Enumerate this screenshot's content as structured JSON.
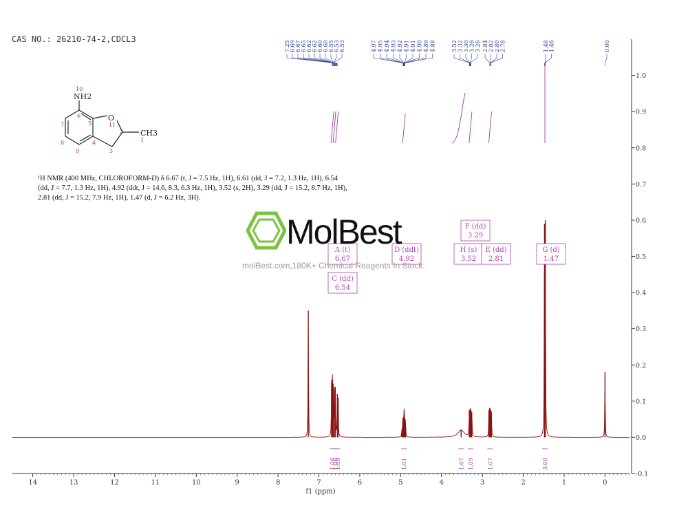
{
  "header": {
    "cas_text": "CAS NO.: 26210-74-2,CDCL3"
  },
  "description": {
    "lead": "¹H NMR (400 MHz, CHLOROFORM-",
    "solvent_suffix": "D",
    "body": ") δ 6.67 (t, J = 7.5 Hz, 1H), 6.61 (dd, J = 7.2, 1.3 Hz, 1H), 6.54 (dd, J = 7.7, 1.3 Hz, 1H), 4.92 (ddt, J = 14.6, 8.3, 6.3 Hz, 1H), 3.52 (s, 2H), 3.29 (dd, J = 15.2, 8.7 Hz, 1H), 2.81 (dd, J = 15.2, 7.9 Hz, 1H), 1.47 (d, J = 6.2 Hz, 3H)."
  },
  "watermark": {
    "name": "MolBest",
    "tagline": "molBest.com,180K+ Chemical Reagents In Stock."
  },
  "structure": {
    "atom_labels": [
      "NH2",
      "O",
      "CH3",
      "10",
      "6",
      "5",
      "11",
      "2",
      "1",
      "7",
      "8",
      "9",
      "4",
      "3"
    ]
  },
  "colors": {
    "spectrum": "#8b1010",
    "integral": "#9b3a9b",
    "peak_label": "#2b3a8f",
    "box": "#b040b0"
  },
  "chart_data": {
    "type": "line",
    "xlabel": "f1 (ppm)",
    "ylabel": "",
    "xlim": [
      14.5,
      -0.6
    ],
    "ylim": [
      -0.1,
      1.1
    ],
    "x_ticks": [
      "14",
      "13",
      "12",
      "11",
      "10",
      "9",
      "8",
      "7",
      "6",
      "5",
      "4",
      "3",
      "2",
      "1",
      "0"
    ],
    "y_ticks": [
      "-0.1",
      "0.0",
      "0.1",
      "0.2",
      "0.3",
      "0.4",
      "0.5",
      "0.6",
      "0.7",
      "0.8",
      "0.9",
      "1.0"
    ],
    "peaks": [
      {
        "ppm": 7.26,
        "height": 0.35
      },
      {
        "ppm": 6.69,
        "height": 0.15
      },
      {
        "ppm": 6.67,
        "height": 0.16
      },
      {
        "ppm": 6.65,
        "height": 0.14
      },
      {
        "ppm": 6.62,
        "height": 0.13
      },
      {
        "ppm": 6.6,
        "height": 0.14
      },
      {
        "ppm": 6.55,
        "height": 0.12
      },
      {
        "ppm": 6.53,
        "height": 0.11
      },
      {
        "ppm": 4.97,
        "height": 0.02
      },
      {
        "ppm": 4.95,
        "height": 0.03
      },
      {
        "ppm": 4.94,
        "height": 0.05
      },
      {
        "ppm": 4.92,
        "height": 0.06
      },
      {
        "ppm": 4.91,
        "height": 0.06
      },
      {
        "ppm": 4.89,
        "height": 0.04
      },
      {
        "ppm": 4.88,
        "height": 0.03
      },
      {
        "ppm": 3.52,
        "height": 0.02
      },
      {
        "ppm": 3.32,
        "height": 0.075
      },
      {
        "ppm": 3.3,
        "height": 0.08
      },
      {
        "ppm": 3.28,
        "height": 0.075
      },
      {
        "ppm": 3.26,
        "height": 0.07
      },
      {
        "ppm": 2.84,
        "height": 0.075
      },
      {
        "ppm": 2.82,
        "height": 0.08
      },
      {
        "ppm": 2.8,
        "height": 0.075
      },
      {
        "ppm": 2.78,
        "height": 0.07
      },
      {
        "ppm": 1.48,
        "height": 0.59
      },
      {
        "ppm": 1.46,
        "height": 0.6
      },
      {
        "ppm": 0.0,
        "height": 0.18
      }
    ],
    "peak_labels": [
      "7.25",
      "6.69",
      "6.67",
      "6.65",
      "6.62",
      "6.62",
      "6.60",
      "6.60",
      "6.55",
      "6.53",
      "6.53",
      "4.97",
      "4.95",
      "4.94",
      "4.93",
      "4.92",
      "4.91",
      "4.91",
      "4.90",
      "4.89",
      "4.88",
      "3.52",
      "3.32",
      "3.30",
      "3.28",
      "3.26",
      "2.84",
      "2.82",
      "2.80",
      "2.78",
      "1.48",
      "1.46",
      "0.00"
    ],
    "integrals": [
      {
        "ppm": 6.67,
        "value": "1.06"
      },
      {
        "ppm": 6.6,
        "value": "1.06"
      },
      {
        "ppm": 6.54,
        "value": "1.00"
      },
      {
        "ppm": 4.92,
        "value": "1.01"
      },
      {
        "ppm": 3.52,
        "value": "1.67"
      },
      {
        "ppm": 3.29,
        "value": "1.09"
      },
      {
        "ppm": 2.81,
        "value": "1.07"
      },
      {
        "ppm": 1.47,
        "value": "3.00"
      }
    ],
    "multiplets": [
      {
        "id": "A (t)",
        "shift": "6.67"
      },
      {
        "id": "C (dd)",
        "shift": "6.54"
      },
      {
        "id": "D (ddt)",
        "shift": "4.92"
      },
      {
        "id": "F (dd)",
        "shift": "3.29"
      },
      {
        "id": "H (s)",
        "shift": "3.52"
      },
      {
        "id": "E (dd)",
        "shift": "2.81"
      },
      {
        "id": "G (d)",
        "shift": "1.47"
      }
    ]
  }
}
